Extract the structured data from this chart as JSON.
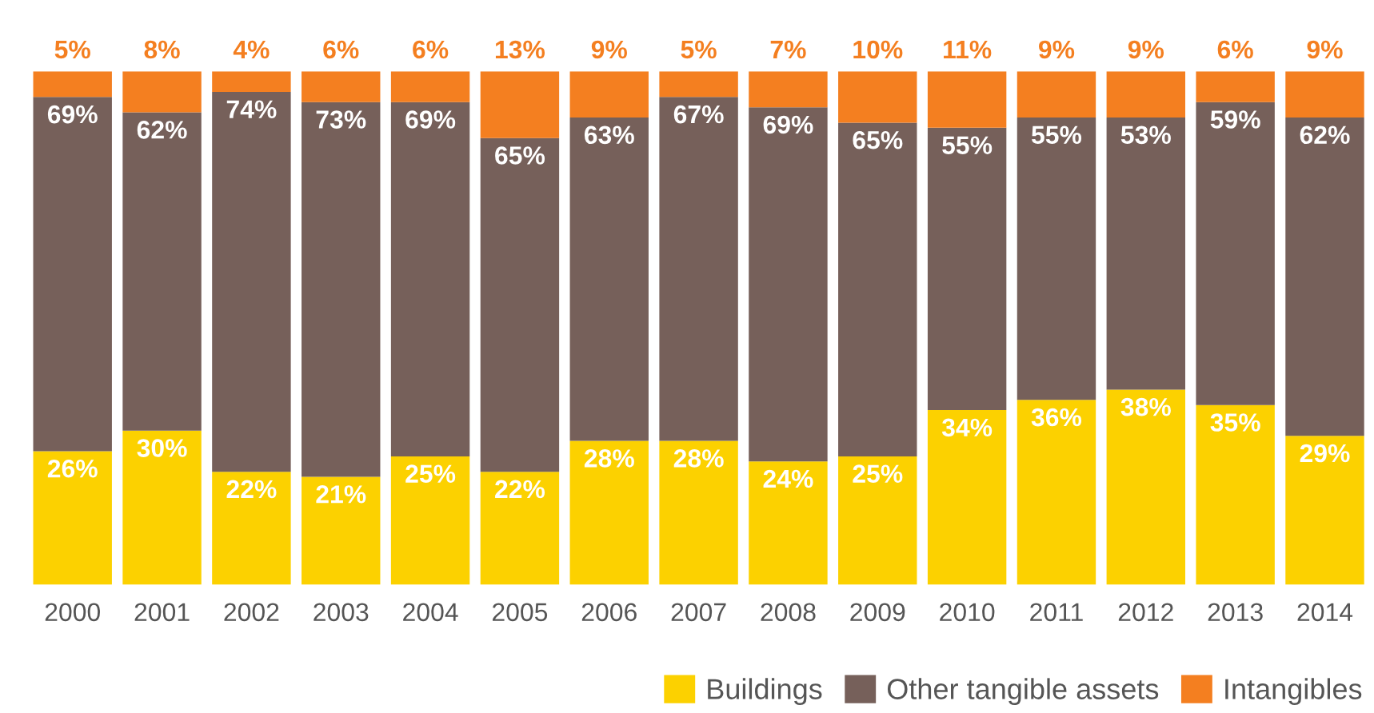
{
  "chart_data": {
    "type": "bar",
    "stacked": true,
    "legend": "bottom right",
    "grid": false,
    "categories": [
      "2000",
      "2001",
      "2002",
      "2003",
      "2004",
      "2005",
      "2006",
      "2007",
      "2008",
      "2009",
      "2010",
      "2011",
      "2012",
      "2013",
      "2014"
    ],
    "series": [
      {
        "name": "Buildings",
        "color": "#fcd100",
        "values": [
          26,
          30,
          22,
          21,
          25,
          22,
          28,
          28,
          24,
          25,
          34,
          36,
          38,
          35,
          29
        ],
        "value_labels": [
          "26%",
          "30%",
          "22%",
          "21%",
          "25%",
          "22%",
          "28%",
          "28%",
          "24%",
          "25%",
          "34%",
          "36%",
          "38%",
          "35%",
          "29%"
        ]
      },
      {
        "name": "Other tangible assets",
        "color": "#76605a",
        "values": [
          69,
          62,
          74,
          73,
          69,
          65,
          63,
          67,
          69,
          65,
          55,
          55,
          53,
          59,
          62
        ],
        "value_labels": [
          "69%",
          "62%",
          "74%",
          "73%",
          "69%",
          "65%",
          "63%",
          "67%",
          "69%",
          "65%",
          "55%",
          "55%",
          "53%",
          "59%",
          "62%"
        ]
      },
      {
        "name": "Intangibles",
        "color": "#f47f20",
        "values": [
          5,
          8,
          4,
          6,
          6,
          13,
          9,
          5,
          7,
          10,
          11,
          9,
          9,
          6,
          9
        ],
        "value_labels": [
          "5%",
          "8%",
          "4%",
          "6%",
          "6%",
          "13%",
          "9%",
          "5%",
          "7%",
          "10%",
          "11%",
          "9%",
          "9%",
          "6%",
          "9%"
        ]
      }
    ]
  }
}
